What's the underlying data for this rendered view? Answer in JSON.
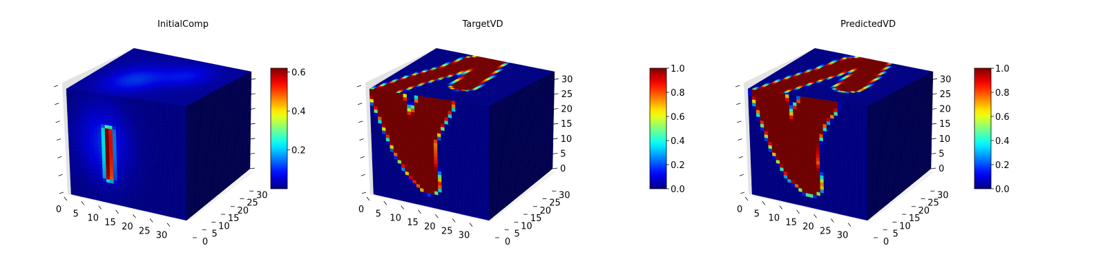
{
  "chart_data": [
    {
      "type": "voxel-3d",
      "title": "InitialComp",
      "field": "initial",
      "grid_size": 32,
      "x_ticks": [
        "0",
        "5",
        "10",
        "15",
        "20",
        "25",
        "30"
      ],
      "y_ticks": [
        "0",
        "5",
        "10",
        "15",
        "20",
        "25",
        "30"
      ],
      "z_ticks": [
        "",
        "",
        "",
        "",
        "",
        "",
        ""
      ],
      "colormap": "jet",
      "colorbar": {
        "min": 0.0,
        "max": 0.62,
        "ticks": [
          "0.2",
          "0.4",
          "0.6"
        ],
        "tick_values": [
          0.2,
          0.4,
          0.6
        ]
      }
    },
    {
      "type": "voxel-3d",
      "title": "TargetVD",
      "field": "target",
      "grid_size": 32,
      "x_ticks": [
        "0",
        "5",
        "10",
        "15",
        "20",
        "25",
        "30"
      ],
      "y_ticks": [
        "0",
        "5",
        "10",
        "15",
        "20",
        "25",
        "30"
      ],
      "z_ticks": [
        "0",
        "5",
        "10",
        "15",
        "20",
        "25",
        "30"
      ],
      "colormap": "jet",
      "colorbar": {
        "min": 0.0,
        "max": 1.0,
        "ticks": [
          "0.0",
          "0.2",
          "0.4",
          "0.6",
          "0.8",
          "1.0"
        ],
        "tick_values": [
          0,
          0.2,
          0.4,
          0.6,
          0.8,
          1.0
        ]
      }
    },
    {
      "type": "voxel-3d",
      "title": "PredictedVD",
      "field": "predicted",
      "grid_size": 32,
      "x_ticks": [
        "0",
        "5",
        "10",
        "15",
        "20",
        "25",
        "30"
      ],
      "y_ticks": [
        "0",
        "5",
        "10",
        "15",
        "20",
        "25",
        "30"
      ],
      "z_ticks": [
        "0",
        "5",
        "10",
        "15",
        "20",
        "25",
        "30"
      ],
      "colormap": "jet",
      "colorbar": {
        "min": 0.0,
        "max": 1.0,
        "ticks": [
          "0.0",
          "0.2",
          "0.4",
          "0.6",
          "0.8",
          "1.0"
        ],
        "tick_values": [
          0,
          0.2,
          0.4,
          0.6,
          0.8,
          1.0
        ]
      }
    }
  ]
}
